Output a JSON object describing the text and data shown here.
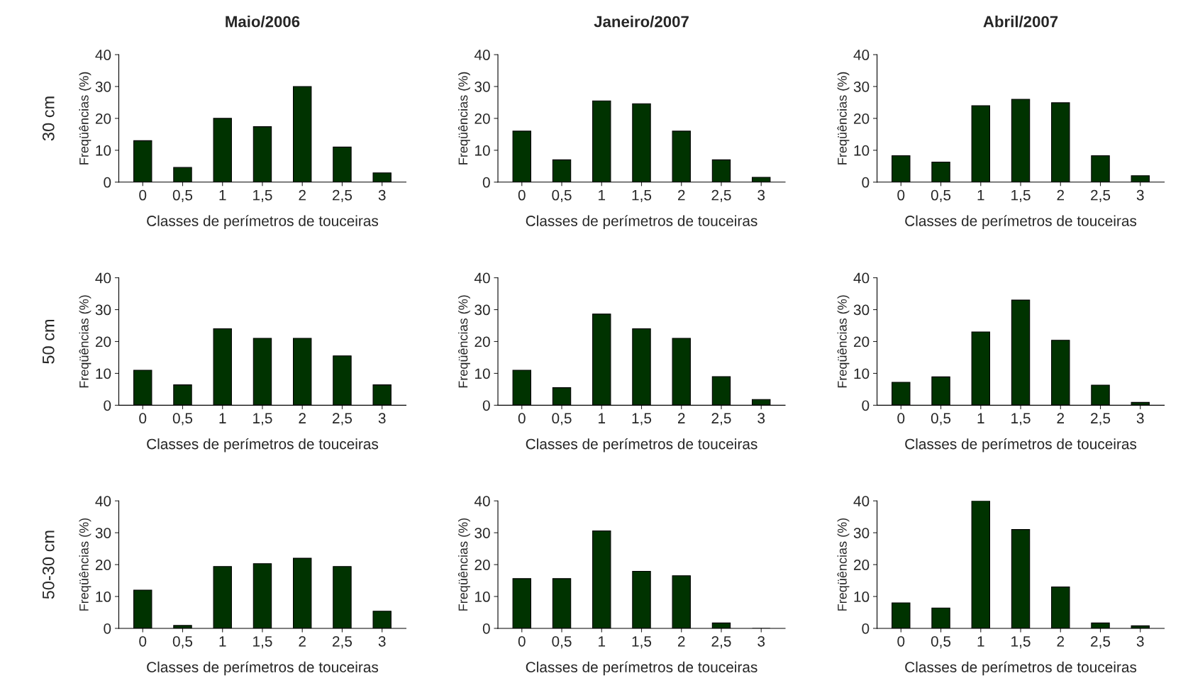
{
  "chart_data": [
    {
      "type": "bar",
      "title": "Maio/2006",
      "annotations": [
        "30 cm"
      ],
      "ylabel": "Freqüências (%)",
      "xlabel": "Classes de perímetros de touceiras",
      "categories": [
        "0",
        "0,5",
        "1",
        "1,5",
        "2",
        "2,5",
        "3"
      ],
      "values": [
        13,
        4.6,
        20,
        17.4,
        30,
        11,
        2.9
      ],
      "color": "#003300",
      "ylim": [
        0,
        40
      ],
      "yticks": [
        0,
        10,
        20,
        30,
        40
      ],
      "grid": false
    },
    {
      "type": "bar",
      "title": "Janeiro/2007",
      "ylabel": "Freqüências (%)",
      "xlabel": "Classes de perímetros de touceiras",
      "categories": [
        "0",
        "0,5",
        "1",
        "1,5",
        "2",
        "2,5",
        "3"
      ],
      "values": [
        16,
        7,
        25.5,
        24.6,
        16,
        7,
        1.5
      ],
      "color": "#003300",
      "ylim": [
        0,
        40
      ],
      "yticks": [
        0,
        10,
        20,
        30,
        40
      ],
      "grid": false
    },
    {
      "type": "bar",
      "title": "Abril/2007",
      "ylabel": "Freqüências (%)",
      "xlabel": "Classes de perímetros de touceiras",
      "categories": [
        "0",
        "0,5",
        "1",
        "1,5",
        "2",
        "2,5",
        "3"
      ],
      "values": [
        8.3,
        6.3,
        24,
        26,
        24.9,
        8.3,
        2
      ],
      "color": "#003300",
      "ylim": [
        0,
        40
      ],
      "yticks": [
        0,
        10,
        20,
        30,
        40
      ],
      "grid": false
    },
    {
      "type": "bar",
      "annotations": [
        "50 cm"
      ],
      "ylabel": "Freqüências (%)",
      "xlabel": "Classes de perímetros de touceiras",
      "categories": [
        "0",
        "0,5",
        "1",
        "1,5",
        "2",
        "2,5",
        "3"
      ],
      "values": [
        11,
        6.4,
        24,
        21,
        21,
        15.5,
        6.4
      ],
      "color": "#003300",
      "ylim": [
        0,
        40
      ],
      "yticks": [
        0,
        10,
        20,
        30,
        40
      ],
      "grid": false
    },
    {
      "type": "bar",
      "ylabel": "Freqüências (%)",
      "xlabel": "Classes de perímetros de touceiras",
      "categories": [
        "0",
        "0,5",
        "1",
        "1,5",
        "2",
        "2,5",
        "3"
      ],
      "values": [
        11,
        5.5,
        28.6,
        24,
        21,
        9,
        1.8
      ],
      "color": "#003300",
      "ylim": [
        0,
        40
      ],
      "yticks": [
        0,
        10,
        20,
        30,
        40
      ],
      "grid": false
    },
    {
      "type": "bar",
      "ylabel": "Freqüências (%)",
      "xlabel": "Classes de perímetros de touceiras",
      "categories": [
        "0",
        "0,5",
        "1",
        "1,5",
        "2",
        "2,5",
        "3"
      ],
      "values": [
        7.2,
        8.9,
        23,
        33,
        20.4,
        6.3,
        0.9
      ],
      "color": "#003300",
      "ylim": [
        0,
        40
      ],
      "yticks": [
        0,
        10,
        20,
        30,
        40
      ],
      "grid": false
    },
    {
      "type": "bar",
      "annotations": [
        "50-30 cm"
      ],
      "ylabel": "Freqüências (%)",
      "xlabel": "Classes de perímetros de touceiras",
      "categories": [
        "0",
        "0,5",
        "1",
        "1,5",
        "2",
        "2,5",
        "3"
      ],
      "values": [
        12,
        0.9,
        19.4,
        20.3,
        22,
        19.4,
        5.4
      ],
      "color": "#003300",
      "ylim": [
        0,
        40
      ],
      "yticks": [
        0,
        10,
        20,
        30,
        40
      ],
      "grid": false
    },
    {
      "type": "bar",
      "ylabel": "Freqüências (%)",
      "xlabel": "Classes de perímetros de touceiras",
      "categories": [
        "0",
        "0,5",
        "1",
        "1,5",
        "2",
        "2,5",
        "3"
      ],
      "values": [
        15.6,
        15.6,
        30.6,
        17.9,
        16.5,
        1.7,
        0
      ],
      "color": "#003300",
      "ylim": [
        0,
        40
      ],
      "yticks": [
        0,
        10,
        20,
        30,
        40
      ],
      "grid": false
    },
    {
      "type": "bar",
      "ylabel": "Freqüências (%)",
      "xlabel": "Classes de perímetros de touceiras",
      "categories": [
        "0",
        "0,5",
        "1",
        "1,5",
        "2",
        "2,5",
        "3"
      ],
      "values": [
        8,
        6.4,
        40,
        31,
        13,
        1.7,
        0.8
      ],
      "color": "#003300",
      "ylim": [
        0,
        40
      ],
      "yticks": [
        0,
        10,
        20,
        30,
        40
      ],
      "grid": false
    }
  ]
}
